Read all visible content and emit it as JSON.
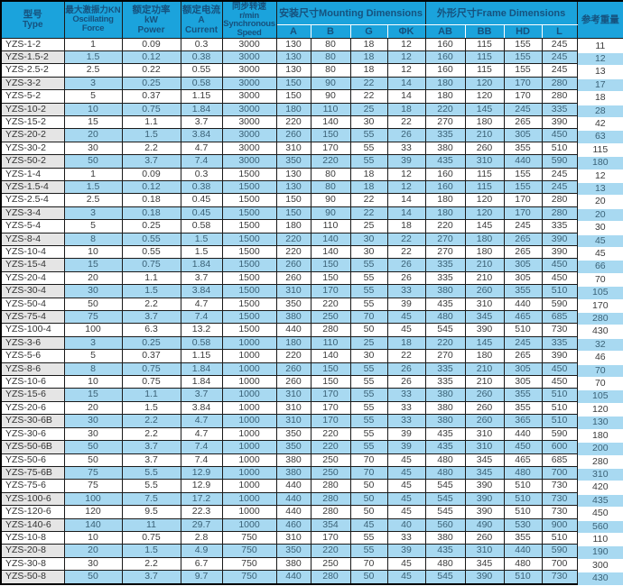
{
  "colors": {
    "header_bg": "#1ba3dc",
    "header_text": "#16527e",
    "row_alt_bg": "#a8d9f1",
    "type_col_alt_bg": "#e5e5e5",
    "grid_border": "#1a1a1a"
  },
  "table": {
    "headers": {
      "type": {
        "zh": "型号",
        "en": "Type"
      },
      "force": {
        "zh": "最大激振力KN",
        "en1": "Oscillating",
        "en2": "Force"
      },
      "power": {
        "zh": "额定功率",
        "en1": "kW",
        "en2": "Power"
      },
      "current": {
        "zh": "额定电流",
        "en1": "A",
        "en2": "Current"
      },
      "speed": {
        "zh": "同步转速",
        "en1": "r/min",
        "en2": "Synchronous",
        "en3": "Speed"
      },
      "mounting_group": "安装尺寸Mounting Dimensions",
      "frame_group": "外形尺寸Frame Dimensions",
      "weight": "参考重量",
      "mounting_cols": [
        "A",
        "B",
        "G",
        "ΦK"
      ],
      "frame_cols": [
        "AB",
        "BB",
        "HD",
        "L"
      ]
    },
    "column_keys": [
      "type",
      "force",
      "power",
      "current",
      "speed",
      "a",
      "b",
      "g",
      "phik",
      "ab",
      "bb",
      "hd",
      "l",
      "weight"
    ],
    "rows": [
      [
        "YZS-1-2",
        "1",
        "0.09",
        "0.3",
        "3000",
        "130",
        "80",
        "18",
        "12",
        "160",
        "115",
        "155",
        "245",
        "11"
      ],
      [
        "YZS-1.5-2",
        "1.5",
        "0.12",
        "0.38",
        "3000",
        "130",
        "80",
        "18",
        "12",
        "160",
        "115",
        "155",
        "245",
        "12"
      ],
      [
        "YZS-2.5-2",
        "2.5",
        "0.22",
        "0.55",
        "3000",
        "130",
        "80",
        "18",
        "12",
        "160",
        "115",
        "155",
        "245",
        "13"
      ],
      [
        "YZS-3-2",
        "3",
        "0.25",
        "0.58",
        "3000",
        "150",
        "90",
        "22",
        "14",
        "180",
        "120",
        "170",
        "280",
        "17"
      ],
      [
        "YZS-5-2",
        "5",
        "0.37",
        "1.15",
        "3000",
        "150",
        "90",
        "22",
        "14",
        "180",
        "120",
        "170",
        "280",
        "18"
      ],
      [
        "YZS-10-2",
        "10",
        "0.75",
        "1.84",
        "3000",
        "180",
        "110",
        "25",
        "18",
        "220",
        "145",
        "245",
        "335",
        "28"
      ],
      [
        "YZS-15-2",
        "15",
        "1.1",
        "3.7",
        "3000",
        "220",
        "140",
        "30",
        "22",
        "270",
        "180",
        "265",
        "390",
        "42"
      ],
      [
        "YZS-20-2",
        "20",
        "1.5",
        "3.84",
        "3000",
        "260",
        "150",
        "55",
        "26",
        "335",
        "210",
        "305",
        "450",
        "63"
      ],
      [
        "YZS-30-2",
        "30",
        "2.2",
        "4.7",
        "3000",
        "310",
        "170",
        "55",
        "33",
        "380",
        "260",
        "355",
        "510",
        "115"
      ],
      [
        "YZS-50-2",
        "50",
        "3.7",
        "7.4",
        "3000",
        "350",
        "220",
        "55",
        "39",
        "435",
        "310",
        "440",
        "590",
        "180"
      ],
      [
        "YZS-1-4",
        "1",
        "0.09",
        "0.3",
        "1500",
        "130",
        "80",
        "18",
        "12",
        "160",
        "115",
        "155",
        "245",
        "12"
      ],
      [
        "YZS-1.5-4",
        "1.5",
        "0.12",
        "0.38",
        "1500",
        "130",
        "80",
        "18",
        "12",
        "160",
        "115",
        "155",
        "245",
        "13"
      ],
      [
        "YZS-2.5-4",
        "2.5",
        "0.18",
        "0.45",
        "1500",
        "150",
        "90",
        "22",
        "14",
        "180",
        "120",
        "170",
        "280",
        "20"
      ],
      [
        "YZS-3-4",
        "3",
        "0.18",
        "0.45",
        "1500",
        "150",
        "90",
        "22",
        "14",
        "180",
        "120",
        "170",
        "280",
        "20"
      ],
      [
        "YZS-5-4",
        "5",
        "0.25",
        "0.58",
        "1500",
        "180",
        "110",
        "25",
        "18",
        "220",
        "145",
        "245",
        "335",
        "30"
      ],
      [
        "YZS-8-4",
        "8",
        "0.55",
        "1.5",
        "1500",
        "220",
        "140",
        "30",
        "22",
        "270",
        "180",
        "265",
        "390",
        "45"
      ],
      [
        "YZS-10-4",
        "10",
        "0.55",
        "1.5",
        "1500",
        "220",
        "140",
        "30",
        "22",
        "270",
        "180",
        "265",
        "390",
        "45"
      ],
      [
        "YZS-15-4",
        "15",
        "0.75",
        "1.84",
        "1500",
        "260",
        "150",
        "55",
        "26",
        "335",
        "210",
        "305",
        "450",
        "66"
      ],
      [
        "YZS-20-4",
        "20",
        "1.1",
        "3.7",
        "1500",
        "260",
        "150",
        "55",
        "26",
        "335",
        "210",
        "305",
        "450",
        "70"
      ],
      [
        "YZS-30-4",
        "30",
        "1.5",
        "3.84",
        "1500",
        "310",
        "170",
        "55",
        "33",
        "380",
        "260",
        "355",
        "510",
        "105"
      ],
      [
        "YZS-50-4",
        "50",
        "2.2",
        "4.7",
        "1500",
        "350",
        "220",
        "55",
        "39",
        "435",
        "310",
        "440",
        "590",
        "170"
      ],
      [
        "YZS-75-4",
        "75",
        "3.7",
        "7.4",
        "1500",
        "380",
        "250",
        "70",
        "45",
        "480",
        "345",
        "465",
        "685",
        "280"
      ],
      [
        "YZS-100-4",
        "100",
        "6.3",
        "13.2",
        "1500",
        "440",
        "280",
        "50",
        "45",
        "545",
        "390",
        "510",
        "730",
        "430"
      ],
      [
        "YZS-3-6",
        "3",
        "0.25",
        "0.58",
        "1000",
        "180",
        "110",
        "25",
        "18",
        "220",
        "145",
        "245",
        "335",
        "32"
      ],
      [
        "YZS-5-6",
        "5",
        "0.37",
        "1.15",
        "1000",
        "220",
        "140",
        "30",
        "22",
        "270",
        "180",
        "265",
        "390",
        "46"
      ],
      [
        "YZS-8-6",
        "8",
        "0.75",
        "1.84",
        "1000",
        "260",
        "150",
        "55",
        "26",
        "335",
        "210",
        "305",
        "450",
        "70"
      ],
      [
        "YZS-10-6",
        "10",
        "0.75",
        "1.84",
        "1000",
        "260",
        "150",
        "55",
        "26",
        "335",
        "210",
        "305",
        "450",
        "70"
      ],
      [
        "YZS-15-6",
        "15",
        "1.1",
        "3.7",
        "1000",
        "310",
        "170",
        "55",
        "33",
        "380",
        "260",
        "355",
        "510",
        "105"
      ],
      [
        "YZS-20-6",
        "20",
        "1.5",
        "3.84",
        "1000",
        "310",
        "170",
        "55",
        "33",
        "380",
        "260",
        "355",
        "510",
        "120"
      ],
      [
        "YZS-30-6B",
        "30",
        "2.2",
        "4.7",
        "1000",
        "310",
        "170",
        "55",
        "33",
        "380",
        "260",
        "365",
        "510",
        "130"
      ],
      [
        "YZS-30-6",
        "30",
        "2.2",
        "4.7",
        "1000",
        "350",
        "220",
        "55",
        "39",
        "435",
        "310",
        "440",
        "590",
        "180"
      ],
      [
        "YZS-50-6B",
        "50",
        "3.7",
        "7.4",
        "1000",
        "350",
        "220",
        "55",
        "39",
        "435",
        "310",
        "450",
        "600",
        "200"
      ],
      [
        "YZS-50-6",
        "50",
        "3.7",
        "7.4",
        "1000",
        "380",
        "250",
        "70",
        "45",
        "480",
        "345",
        "465",
        "685",
        "280"
      ],
      [
        "YZS-75-6B",
        "75",
        "5.5",
        "12.9",
        "1000",
        "380",
        "250",
        "70",
        "45",
        "480",
        "345",
        "480",
        "700",
        "310"
      ],
      [
        "YZS-75-6",
        "75",
        "5.5",
        "12.9",
        "1000",
        "440",
        "280",
        "50",
        "45",
        "545",
        "390",
        "510",
        "730",
        "420"
      ],
      [
        "YZS-100-6",
        "100",
        "7.5",
        "17.2",
        "1000",
        "440",
        "280",
        "50",
        "45",
        "545",
        "390",
        "510",
        "730",
        "435"
      ],
      [
        "YZS-120-6",
        "120",
        "9.5",
        "22.3",
        "1000",
        "440",
        "280",
        "50",
        "45",
        "545",
        "390",
        "510",
        "730",
        "450"
      ],
      [
        "YZS-140-6",
        "140",
        "11",
        "29.7",
        "1000",
        "460",
        "354",
        "45",
        "40",
        "560",
        "490",
        "530",
        "900",
        "560"
      ],
      [
        "YZS-10-8",
        "10",
        "0.75",
        "2.8",
        "750",
        "310",
        "170",
        "55",
        "33",
        "380",
        "260",
        "355",
        "510",
        "110"
      ],
      [
        "YZS-20-8",
        "20",
        "1.5",
        "4.9",
        "750",
        "350",
        "220",
        "55",
        "39",
        "435",
        "310",
        "440",
        "590",
        "190"
      ],
      [
        "YZS-30-8",
        "30",
        "2.2",
        "6.7",
        "750",
        "380",
        "250",
        "70",
        "45",
        "480",
        "345",
        "480",
        "700",
        "300"
      ],
      [
        "YZS-50-8",
        "50",
        "3.7",
        "9.7",
        "750",
        "440",
        "280",
        "50",
        "45",
        "545",
        "390",
        "510",
        "730",
        "430"
      ]
    ]
  }
}
